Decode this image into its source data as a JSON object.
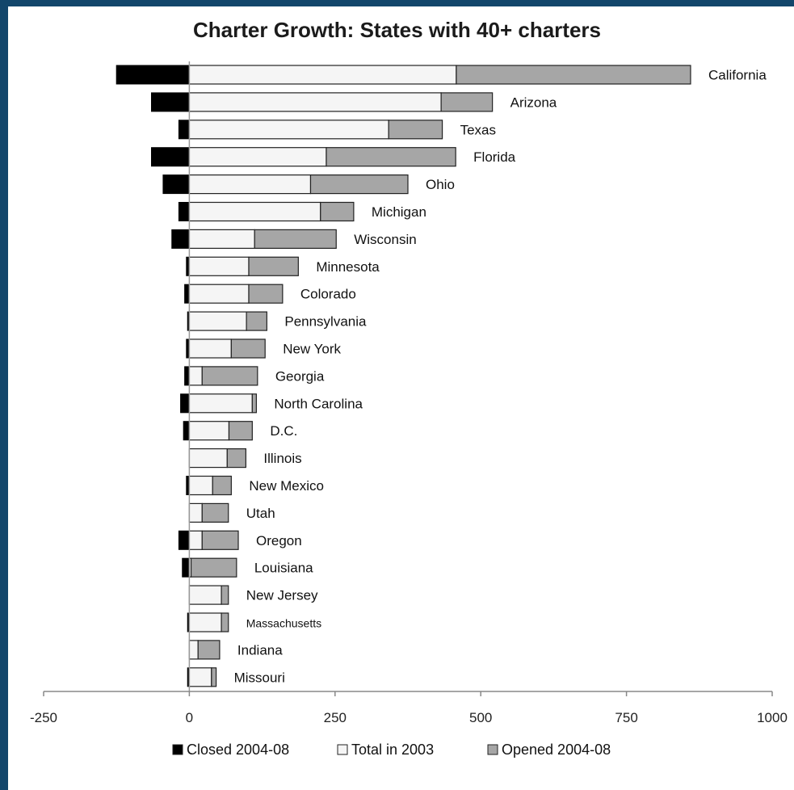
{
  "chart_data": {
    "type": "bar",
    "stacked": true,
    "orientation": "horizontal",
    "title": "Charter Growth: States with 40+ charters",
    "xlabel": "",
    "ylabel": "",
    "xlim": [
      -250,
      1000
    ],
    "xticks": [
      "-250",
      "0",
      "250",
      "500",
      "750",
      "1000"
    ],
    "legend_position": "bottom",
    "categories": [
      "California",
      "Arizona",
      "Texas",
      "Florida",
      "Ohio",
      "Michigan",
      "Wisconsin",
      "Minnesota",
      "Colorado",
      "Pennsylvania",
      "New York",
      "Georgia",
      "North Carolina",
      "D.C.",
      "Illinois",
      "New Mexico",
      "Utah",
      "Oregon",
      "Louisiana",
      "New Jersey",
      "Massachusetts",
      "Indiana",
      "Missouri"
    ],
    "series": [
      {
        "name": "Closed 2004-08",
        "color": "#000000",
        "values": [
          -125,
          -65,
          -18,
          -65,
          -45,
          -18,
          -30,
          -5,
          -8,
          -3,
          -5,
          -8,
          -15,
          -10,
          0,
          -5,
          0,
          -18,
          -12,
          0,
          -3,
          0,
          -3
        ]
      },
      {
        "name": "Total in 2003",
        "color": "#f5f5f5",
        "values": [
          458,
          432,
          342,
          235,
          208,
          225,
          112,
          102,
          102,
          98,
          72,
          22,
          108,
          68,
          65,
          40,
          22,
          22,
          3,
          55,
          55,
          15,
          38
        ]
      },
      {
        "name": "Opened 2004-08",
        "color": "#a6a6a6",
        "values": [
          402,
          88,
          92,
          222,
          167,
          57,
          140,
          85,
          58,
          35,
          58,
          95,
          7,
          40,
          32,
          32,
          45,
          62,
          78,
          12,
          12,
          37,
          8
        ]
      }
    ]
  }
}
